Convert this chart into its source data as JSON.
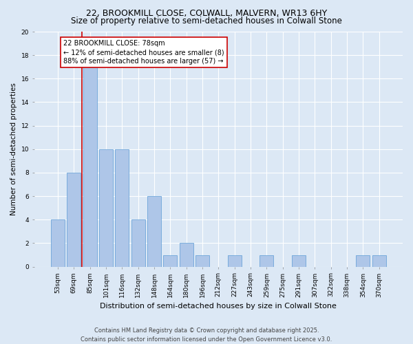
{
  "title": "22, BROOKMILL CLOSE, COLWALL, MALVERN, WR13 6HY",
  "subtitle": "Size of property relative to semi-detached houses in Colwall Stone",
  "categories": [
    "53sqm",
    "69sqm",
    "85sqm",
    "101sqm",
    "116sqm",
    "132sqm",
    "148sqm",
    "164sqm",
    "180sqm",
    "196sqm",
    "212sqm",
    "227sqm",
    "243sqm",
    "259sqm",
    "275sqm",
    "291sqm",
    "307sqm",
    "322sqm",
    "338sqm",
    "354sqm",
    "370sqm"
  ],
  "values": [
    4,
    8,
    17,
    10,
    10,
    4,
    6,
    1,
    2,
    1,
    0,
    1,
    0,
    1,
    0,
    1,
    0,
    0,
    0,
    1,
    1
  ],
  "bar_color": "#aec6e8",
  "bar_edge_color": "#5b9bd5",
  "vline_color": "#cc0000",
  "vline_position": 1.5,
  "property_label": "22 BROOKMILL CLOSE: 78sqm",
  "annotation_line1": "← 12% of semi-detached houses are smaller (8)",
  "annotation_line2": "88% of semi-detached houses are larger (57) →",
  "xlabel": "Distribution of semi-detached houses by size in Colwall Stone",
  "ylabel": "Number of semi-detached properties",
  "ylim": [
    0,
    20
  ],
  "yticks": [
    0,
    2,
    4,
    6,
    8,
    10,
    12,
    14,
    16,
    18,
    20
  ],
  "background_color": "#dce8f5",
  "plot_bg_color": "#dce8f5",
  "grid_color": "#ffffff",
  "annotation_box_color": "#ffffff",
  "annotation_border_color": "#cc0000",
  "footer_line1": "Contains HM Land Registry data © Crown copyright and database right 2025.",
  "footer_line2": "Contains public sector information licensed under the Open Government Licence v3.0.",
  "title_fontsize": 9,
  "subtitle_fontsize": 8.5,
  "xlabel_fontsize": 8,
  "ylabel_fontsize": 7.5,
  "tick_fontsize": 6.5,
  "footer_fontsize": 6,
  "annotation_fontsize": 7
}
